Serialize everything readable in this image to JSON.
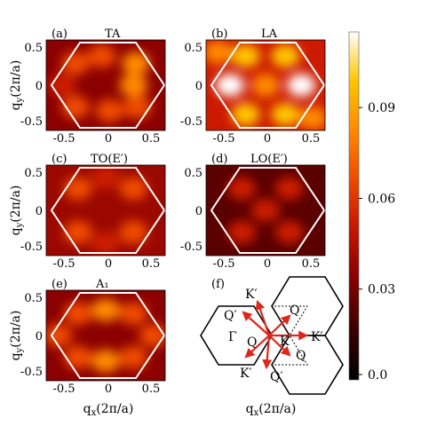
{
  "chart_data": [
    {
      "type": "heatmap",
      "panel": "(a)",
      "title": "TA",
      "xlim": [
        -0.75,
        0.75
      ],
      "ylim": [
        -0.62,
        0.62
      ],
      "xticks": [
        "-0.5",
        "0",
        "0.5"
      ],
      "yticks": [
        "0.5",
        "0",
        "-0.5"
      ],
      "hot_spots": [
        {
          "x": -0.38,
          "y": 0.3,
          "value": 0.07
        },
        {
          "x": 0.38,
          "y": 0.3,
          "value": 0.08
        },
        {
          "x": -0.38,
          "y": -0.3,
          "value": 0.07
        },
        {
          "x": 0.35,
          "y": 0.0,
          "value": 0.09
        },
        {
          "x": 0.05,
          "y": -0.35,
          "value": 0.06
        },
        {
          "x": -0.05,
          "y": 0.4,
          "value": 0.06
        },
        {
          "x": 0.4,
          "y": -0.3,
          "value": 0.07
        },
        {
          "x": -0.55,
          "y": 0.0,
          "value": 0.05
        }
      ]
    },
    {
      "type": "heatmap",
      "panel": "(b)",
      "title": "LA",
      "xlim": [
        -0.75,
        0.75
      ],
      "ylim": [
        -0.62,
        0.62
      ],
      "xticks": [
        "-0.5",
        "0",
        "0.5"
      ],
      "yticks": [
        "0.5",
        "0",
        "-0.5"
      ],
      "hot_spots": [
        {
          "x": -0.45,
          "y": 0.0,
          "value": 0.11
        },
        {
          "x": 0.45,
          "y": 0.0,
          "value": 0.11
        },
        {
          "x": -0.25,
          "y": 0.4,
          "value": 0.1
        },
        {
          "x": 0.25,
          "y": 0.4,
          "value": 0.1
        },
        {
          "x": -0.25,
          "y": -0.4,
          "value": 0.1
        },
        {
          "x": 0.25,
          "y": -0.4,
          "value": 0.1
        },
        {
          "x": 0.0,
          "y": 0.0,
          "value": 0.08
        },
        {
          "x": -0.6,
          "y": 0.45,
          "value": 0.09
        },
        {
          "x": 0.6,
          "y": -0.45,
          "value": 0.09
        }
      ]
    },
    {
      "type": "heatmap",
      "panel": "(c)",
      "title": "TO(E′)",
      "xlim": [
        -0.75,
        0.75
      ],
      "ylim": [
        -0.62,
        0.62
      ],
      "xticks": [
        "-0.5",
        "0",
        "0.5"
      ],
      "yticks": [
        "0.5",
        "0",
        "-0.5"
      ],
      "hot_spots": [
        {
          "x": -0.35,
          "y": 0.3,
          "value": 0.07
        },
        {
          "x": 0.35,
          "y": 0.3,
          "value": 0.06
        },
        {
          "x": -0.35,
          "y": -0.3,
          "value": 0.06
        },
        {
          "x": 0.35,
          "y": -0.3,
          "value": 0.06
        },
        {
          "x": 0.0,
          "y": 0.45,
          "value": 0.05
        },
        {
          "x": 0.0,
          "y": -0.45,
          "value": 0.05
        }
      ]
    },
    {
      "type": "heatmap",
      "panel": "(d)",
      "title": "LO(E′)",
      "xlim": [
        -0.75,
        0.75
      ],
      "ylim": [
        -0.62,
        0.62
      ],
      "xticks": [
        "-0.5",
        "0",
        "0.5"
      ],
      "yticks": [
        "0.5",
        "0",
        "-0.5"
      ],
      "hot_spots": [
        {
          "x": -0.3,
          "y": 0.3,
          "value": 0.05
        },
        {
          "x": 0.3,
          "y": 0.3,
          "value": 0.05
        },
        {
          "x": -0.3,
          "y": -0.3,
          "value": 0.05
        },
        {
          "x": 0.3,
          "y": -0.3,
          "value": 0.05
        },
        {
          "x": 0.0,
          "y": 0.0,
          "value": 0.045
        }
      ]
    },
    {
      "type": "heatmap",
      "panel": "(e)",
      "title": "A₁",
      "xlim": [
        -0.75,
        0.75
      ],
      "ylim": [
        -0.62,
        0.62
      ],
      "xticks": [
        "-0.5",
        "0",
        "0.5"
      ],
      "yticks": [
        "0.5",
        "0",
        "-0.5"
      ],
      "hot_spots": [
        {
          "x": -0.35,
          "y": 0.3,
          "value": 0.07
        },
        {
          "x": 0.35,
          "y": 0.3,
          "value": 0.07
        },
        {
          "x": -0.35,
          "y": -0.3,
          "value": 0.07
        },
        {
          "x": 0.35,
          "y": -0.3,
          "value": 0.07
        },
        {
          "x": 0.0,
          "y": 0.35,
          "value": 0.08
        },
        {
          "x": 0.0,
          "y": -0.35,
          "value": 0.08
        },
        {
          "x": -0.6,
          "y": 0.0,
          "value": 0.06
        },
        {
          "x": 0.6,
          "y": 0.0,
          "value": 0.06
        }
      ]
    }
  ],
  "axes": {
    "xlabel_left": "q",
    "xlabel_left_sub": "x",
    "xlabel_left_units": "(2π/a)",
    "ylabel_left": "q",
    "ylabel_left_sub": "y",
    "ylabel_left_units": "(2π/a)"
  },
  "colorbar": {
    "ticks": [
      "0.09",
      "0.06",
      "0.03",
      "0.0"
    ],
    "tick_values": [
      0.09,
      0.06,
      0.03,
      0.0
    ],
    "range": [
      0.0,
      0.115
    ],
    "colormap": [
      "#000000",
      "#3d0000",
      "#8b0000",
      "#cc1a00",
      "#ef4c00",
      "#ff8a00",
      "#ffc600",
      "#ffffff"
    ]
  },
  "diagram": {
    "panel": "(f)",
    "labels": {
      "K_prime_top": "K′",
      "Q_prime_left": "Q′",
      "Q_top": "Q",
      "Gamma": "Γ",
      "Q_mid": "Q",
      "K_mid": "K",
      "K_prime_right": "K′",
      "Q_low": "Q",
      "K_prime_bottom": "K′",
      "Q_prime_bottom": "Q′"
    },
    "xlabel": "q",
    "xlabel_sub": "x",
    "xlabel_units": "(2π/a)"
  },
  "colors": {
    "arrow": "#e0261b",
    "hexagon_outline": "#ffffff",
    "bz_outline": "#000000"
  }
}
